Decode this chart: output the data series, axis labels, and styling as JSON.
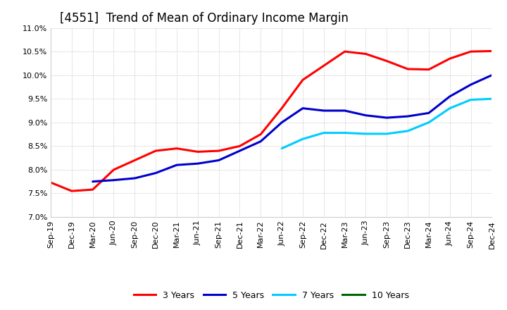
{
  "title": "[4551]  Trend of Mean of Ordinary Income Margin",
  "title_fontsize": 12,
  "ylim": [
    0.07,
    0.11
  ],
  "yticks": [
    0.07,
    0.075,
    0.08,
    0.085,
    0.09,
    0.095,
    0.1,
    0.105,
    0.11
  ],
  "background_color": "#ffffff",
  "grid_color": "#aaaaaa",
  "series": {
    "3 Years": {
      "color": "#ff0000",
      "data": [
        [
          "Sep-19",
          0.0773
        ],
        [
          "Dec-19",
          0.0755
        ],
        [
          "Mar-20",
          0.0758
        ],
        [
          "Jun-20",
          0.08
        ],
        [
          "Sep-20",
          0.082
        ],
        [
          "Dec-20",
          0.084
        ],
        [
          "Mar-21",
          0.0845
        ],
        [
          "Jun-21",
          0.0838
        ],
        [
          "Sep-21",
          0.084
        ],
        [
          "Dec-21",
          0.085
        ],
        [
          "Mar-22",
          0.0875
        ],
        [
          "Jun-22",
          0.093
        ],
        [
          "Sep-22",
          0.099
        ],
        [
          "Dec-22",
          0.102
        ],
        [
          "Mar-23",
          0.105
        ],
        [
          "Jun-23",
          0.1045
        ],
        [
          "Sep-23",
          0.103
        ],
        [
          "Dec-23",
          0.1013
        ],
        [
          "Mar-24",
          0.1012
        ],
        [
          "Jun-24",
          0.1035
        ],
        [
          "Sep-24",
          0.105
        ],
        [
          "Dec-24",
          0.1051
        ]
      ]
    },
    "5 Years": {
      "color": "#0000cc",
      "data": [
        [
          "Mar-20",
          0.0775
        ],
        [
          "Jun-20",
          0.0778
        ],
        [
          "Sep-20",
          0.0782
        ],
        [
          "Dec-20",
          0.0793
        ],
        [
          "Mar-21",
          0.081
        ],
        [
          "Jun-21",
          0.0813
        ],
        [
          "Sep-21",
          0.082
        ],
        [
          "Dec-21",
          0.084
        ],
        [
          "Mar-22",
          0.086
        ],
        [
          "Jun-22",
          0.09
        ],
        [
          "Sep-22",
          0.093
        ],
        [
          "Dec-22",
          0.0925
        ],
        [
          "Mar-23",
          0.0925
        ],
        [
          "Jun-23",
          0.0915
        ],
        [
          "Sep-23",
          0.091
        ],
        [
          "Dec-23",
          0.0913
        ],
        [
          "Mar-24",
          0.092
        ],
        [
          "Jun-24",
          0.0955
        ],
        [
          "Sep-24",
          0.098
        ],
        [
          "Dec-24",
          0.1
        ]
      ]
    },
    "7 Years": {
      "color": "#00ccff",
      "data": [
        [
          "Jun-22",
          0.0845
        ],
        [
          "Sep-22",
          0.0865
        ],
        [
          "Dec-22",
          0.0878
        ],
        [
          "Mar-23",
          0.0878
        ],
        [
          "Jun-23",
          0.0876
        ],
        [
          "Sep-23",
          0.0876
        ],
        [
          "Dec-23",
          0.0882
        ],
        [
          "Mar-24",
          0.09
        ],
        [
          "Jun-24",
          0.093
        ],
        [
          "Sep-24",
          0.0948
        ],
        [
          "Dec-24",
          0.095
        ]
      ]
    },
    "10 Years": {
      "color": "#006600",
      "data": []
    }
  },
  "xtick_labels": [
    "Sep-19",
    "Dec-19",
    "Mar-20",
    "Jun-20",
    "Sep-20",
    "Dec-20",
    "Mar-21",
    "Jun-21",
    "Sep-21",
    "Dec-21",
    "Mar-22",
    "Jun-22",
    "Sep-22",
    "Dec-22",
    "Mar-23",
    "Jun-23",
    "Sep-23",
    "Dec-23",
    "Mar-24",
    "Jun-24",
    "Sep-24",
    "Dec-24"
  ],
  "legend_entries": [
    "3 Years",
    "5 Years",
    "7 Years",
    "10 Years"
  ],
  "legend_colors": [
    "#ff0000",
    "#0000cc",
    "#00ccff",
    "#006600"
  ],
  "linewidth": 2.2
}
